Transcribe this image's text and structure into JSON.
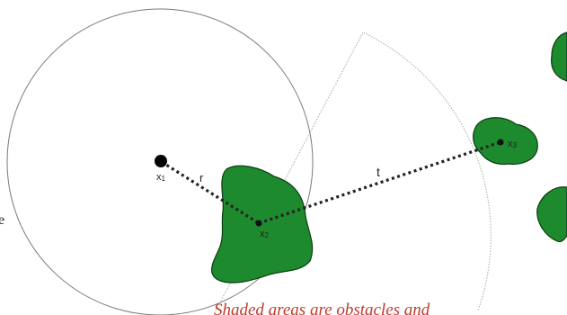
{
  "labels": {
    "x1_base": "x",
    "x1_sub": "1",
    "x2_base": "x",
    "x2_sub": "2",
    "x3_base": "x",
    "x3_sub": "3",
    "r": "r",
    "t": "t"
  },
  "edge_letter": "e",
  "caption": "Shaded areas are obstacles and",
  "colors": {
    "obstacle_fill": "#1e8a2e",
    "obstacle_stroke": "#0c3d12",
    "circle_stroke": "#7a7a7a",
    "arc_stroke": "#9ab39a",
    "dotted_line": "#222222",
    "caption": "#c0392b"
  }
}
